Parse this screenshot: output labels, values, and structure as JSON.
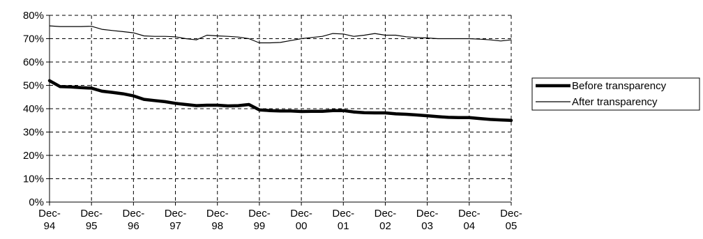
{
  "chart_data": {
    "type": "line",
    "x": [
      "Dec-94",
      "Mar-95",
      "Jun-95",
      "Sep-95",
      "Dec-95",
      "Mar-96",
      "Jun-96",
      "Sep-96",
      "Dec-96",
      "Mar-97",
      "Jun-97",
      "Sep-97",
      "Dec-97",
      "Mar-98",
      "Jun-98",
      "Sep-98",
      "Dec-98",
      "Mar-99",
      "Jun-99",
      "Sep-99",
      "Dec-99",
      "Mar-00",
      "Jun-00",
      "Sep-00",
      "Dec-00",
      "Mar-01",
      "Jun-01",
      "Sep-01",
      "Dec-01",
      "Mar-02",
      "Jun-02",
      "Sep-02",
      "Dec-02",
      "Mar-03",
      "Jun-03",
      "Sep-03",
      "Dec-03",
      "Mar-04",
      "Jun-04",
      "Sep-04",
      "Dec-04",
      "Mar-05",
      "Jun-05",
      "Sep-05",
      "Dec-05"
    ],
    "x_ticks": [
      {
        "line1": "Dec-",
        "line2": "94"
      },
      {
        "line1": "Dec-",
        "line2": "95"
      },
      {
        "line1": "Dec-",
        "line2": "96"
      },
      {
        "line1": "Dec-",
        "line2": "97"
      },
      {
        "line1": "Dec-",
        "line2": "98"
      },
      {
        "line1": "Dec-",
        "line2": "99"
      },
      {
        "line1": "Dec-",
        "line2": "00"
      },
      {
        "line1": "Dec-",
        "line2": "01"
      },
      {
        "line1": "Dec-",
        "line2": "02"
      },
      {
        "line1": "Dec-",
        "line2": "03"
      },
      {
        "line1": "Dec-",
        "line2": "04"
      },
      {
        "line1": "Dec-",
        "line2": "05"
      }
    ],
    "y_ticks": [
      "0%",
      "10%",
      "20%",
      "30%",
      "40%",
      "50%",
      "60%",
      "70%",
      "80%"
    ],
    "ylim": [
      0,
      80
    ],
    "grid": true,
    "legend_position": "right",
    "series": [
      {
        "name": "Before transparency",
        "style": "thick",
        "color": "#000000",
        "values": [
          52,
          49.5,
          49.3,
          49,
          48.8,
          47.5,
          47,
          46.4,
          45.5,
          44,
          43.5,
          43,
          42.3,
          41.8,
          41.3,
          41.5,
          41.5,
          41.2,
          41.3,
          41.8,
          39.5,
          39.2,
          39,
          39,
          38.8,
          38.9,
          38.9,
          39.2,
          39.2,
          38.6,
          38.3,
          38.2,
          38.2,
          37.8,
          37.6,
          37.3,
          37,
          36.6,
          36.3,
          36.2,
          36.2,
          35.8,
          35.4,
          35.2,
          35
        ]
      },
      {
        "name": "After transparency",
        "style": "thin",
        "color": "#000000",
        "values": [
          75.5,
          75.2,
          75.2,
          75.2,
          75.3,
          74,
          73.5,
          73,
          72.5,
          71.2,
          71,
          71,
          70.8,
          70,
          69.5,
          71.5,
          71.2,
          71,
          70.7,
          70,
          68.2,
          68.2,
          68.4,
          69.2,
          70,
          70.5,
          71,
          72.2,
          72,
          71,
          71.5,
          72.2,
          71.5,
          71.5,
          70.8,
          70.5,
          70.3,
          70,
          70,
          70,
          70,
          69.8,
          69.5,
          69,
          69.5
        ]
      }
    ]
  }
}
